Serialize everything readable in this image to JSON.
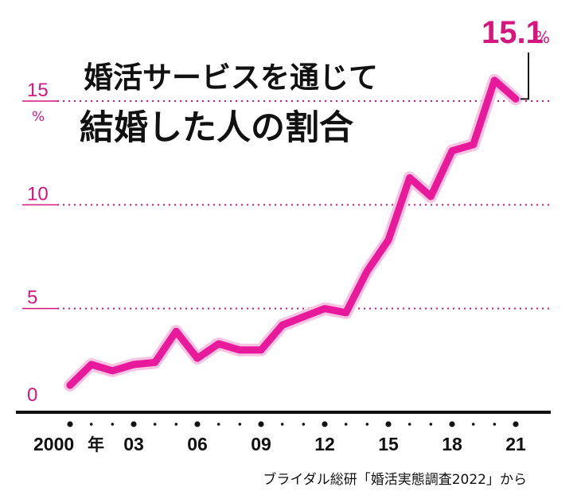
{
  "chart_data": {
    "type": "line",
    "title": "婚活サービスを通じて",
    "subtitle": "結婚した人の割合",
    "unit": "%",
    "x_unit": "年",
    "source": "ブライダル総研「婚活実態調査2022」から",
    "x": [
      2000,
      2001,
      2002,
      2003,
      2004,
      2005,
      2006,
      2007,
      2008,
      2009,
      2010,
      2011,
      2012,
      2013,
      2014,
      2015,
      2016,
      2017,
      2018,
      2019,
      2020,
      2021
    ],
    "x_tick_labels": [
      {
        "x": 2000,
        "label": "2000"
      },
      {
        "x": 2003,
        "label": "03"
      },
      {
        "x": 2006,
        "label": "06"
      },
      {
        "x": 2009,
        "label": "09"
      },
      {
        "x": 2012,
        "label": "12"
      },
      {
        "x": 2015,
        "label": "15"
      },
      {
        "x": 2018,
        "label": "18"
      },
      {
        "x": 2021,
        "label": "21"
      }
    ],
    "values": [
      1.3,
      2.3,
      2.0,
      2.3,
      2.4,
      3.9,
      2.6,
      3.3,
      3.0,
      3.0,
      4.2,
      4.6,
      5.0,
      4.8,
      6.8,
      8.3,
      11.3,
      10.4,
      12.6,
      12.9,
      16.0,
      15.1
    ],
    "y_ticks": [
      0,
      5,
      10,
      15
    ],
    "ylim": [
      0,
      16.5
    ],
    "grid": "dotted-horizontal",
    "annotation": {
      "x": 2021,
      "value_text": "15.1",
      "unit": "%"
    },
    "colors": {
      "line": "#e8199a",
      "line_outline": "#f9c3e2",
      "grid": "#d6157f",
      "axis": "#111111"
    }
  }
}
